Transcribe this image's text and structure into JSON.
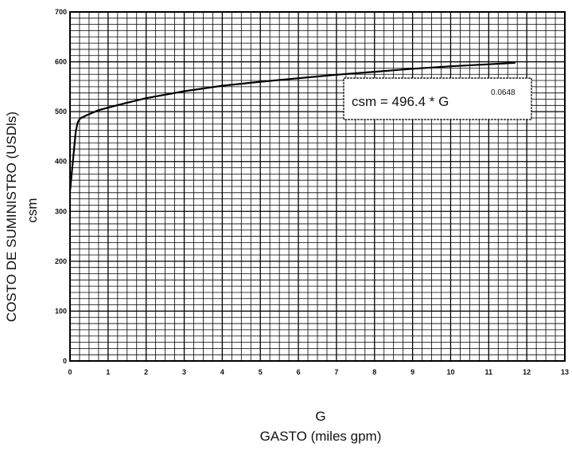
{
  "chart_data": {
    "type": "line",
    "title": "",
    "xlabel": "G",
    "xlabel_sub": "GASTO (miles gpm)",
    "ylabel": "COSTO DE SUMINISTRO (USDls)",
    "ylabel_sub": "csm",
    "xlim": [
      0,
      13
    ],
    "ylim": [
      0,
      700
    ],
    "x_ticks": [
      "0",
      "1",
      "2",
      "3",
      "4",
      "5",
      "6",
      "7",
      "8",
      "9",
      "10",
      "11",
      "12",
      "13"
    ],
    "y_ticks": [
      "0",
      "100",
      "200",
      "300",
      "400",
      "500",
      "600",
      "700"
    ],
    "grid": true,
    "annotation": {
      "text": "csm = 496.4 * G",
      "exponent": "0.0648"
    },
    "series": [
      {
        "x": [
          0.0,
          0.05,
          0.1,
          0.15,
          0.2,
          0.25,
          0.3,
          0.5,
          0.75,
          1.0,
          1.5,
          2.0,
          3.0,
          4.0,
          5.0,
          6.0,
          7.0,
          8.0,
          9.0,
          10.0,
          11.0,
          11.7
        ],
        "y": [
          340,
          380,
          420,
          460,
          478,
          485,
          488,
          495,
          503,
          508,
          518,
          527,
          541,
          552,
          560,
          567,
          574,
          580,
          586,
          591,
          595,
          598
        ]
      }
    ]
  }
}
